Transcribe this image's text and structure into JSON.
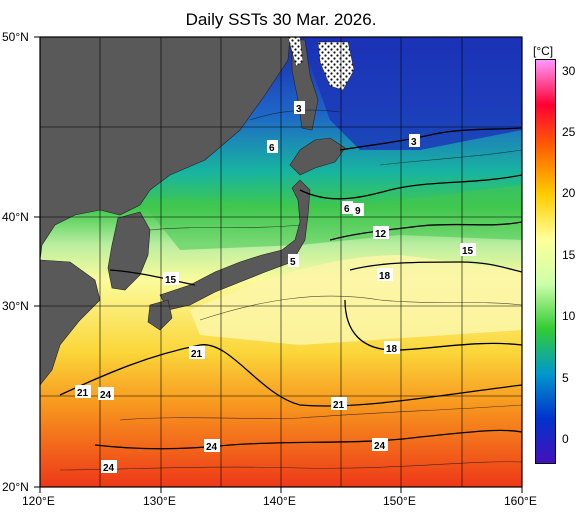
{
  "title": "Daily SSTs 30 Mar. 2026.",
  "lat_labels": [
    "50°N",
    "40°N",
    "30°N",
    "20°N"
  ],
  "lon_labels": [
    "120°E",
    "130°E",
    "140°E",
    "150°E",
    "160°E"
  ],
  "colorbar": {
    "unit": "[°C]",
    "ticks": [
      "30",
      "25",
      "20",
      "15",
      "10",
      "5",
      "0"
    ],
    "colors": [
      "#ff99ff",
      "#ff0033",
      "#ff6600",
      "#ffcc00",
      "#ffff99",
      "#ccffaa",
      "#33cc33",
      "#0099cc",
      "#0033cc",
      "#4411bb"
    ]
  },
  "contour_labels": [
    "3",
    "3",
    "6",
    "6",
    "9",
    "12",
    "5",
    "15",
    "15",
    "18",
    "18",
    "21",
    "21",
    "21",
    "24",
    "24",
    "24",
    "24"
  ],
  "colors": {
    "land": "#595959",
    "ice": "#ffffff"
  }
}
